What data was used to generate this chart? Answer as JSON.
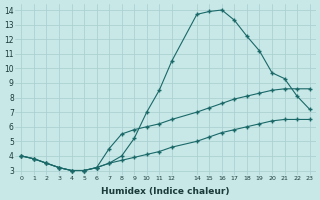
{
  "xlabel": "Humidex (Indice chaleur)",
  "bg_color": "#c8e8e8",
  "grid_color": "#a8cece",
  "line_color": "#1a6868",
  "xlim": [
    -0.5,
    23.5
  ],
  "ylim": [
    2.7,
    14.4
  ],
  "xticks": [
    0,
    1,
    2,
    3,
    4,
    5,
    6,
    7,
    8,
    9,
    10,
    11,
    12,
    14,
    15,
    16,
    17,
    18,
    19,
    20,
    21,
    22,
    23
  ],
  "yticks": [
    3,
    4,
    5,
    6,
    7,
    8,
    9,
    10,
    11,
    12,
    13,
    14
  ],
  "line1_x": [
    0,
    1,
    2,
    3,
    4,
    5,
    6,
    7,
    8,
    9,
    10,
    11,
    12,
    14,
    15,
    16,
    17,
    18,
    19,
    20,
    21,
    22,
    23
  ],
  "line1_y": [
    4.0,
    3.8,
    3.5,
    3.2,
    3.0,
    3.0,
    3.2,
    3.5,
    4.0,
    5.2,
    7.0,
    8.5,
    10.5,
    13.7,
    13.9,
    14.0,
    13.3,
    12.2,
    11.2,
    9.7,
    9.3,
    8.1,
    7.2
  ],
  "line2_x": [
    0,
    1,
    2,
    3,
    4,
    5,
    6,
    7,
    8,
    9,
    10,
    11,
    12,
    14,
    15,
    16,
    17,
    18,
    19,
    20,
    21,
    22,
    23
  ],
  "line2_y": [
    4.0,
    3.8,
    3.5,
    3.2,
    3.0,
    3.0,
    3.2,
    4.5,
    5.5,
    5.8,
    6.0,
    6.2,
    6.5,
    7.0,
    7.3,
    7.6,
    7.9,
    8.1,
    8.3,
    8.5,
    8.6,
    8.6,
    8.6
  ],
  "line3_x": [
    0,
    1,
    2,
    3,
    4,
    5,
    6,
    7,
    8,
    9,
    10,
    11,
    12,
    14,
    15,
    16,
    17,
    18,
    19,
    20,
    21,
    22,
    23
  ],
  "line3_y": [
    4.0,
    3.8,
    3.5,
    3.2,
    3.0,
    3.0,
    3.2,
    3.5,
    3.7,
    3.9,
    4.1,
    4.3,
    4.6,
    5.0,
    5.3,
    5.6,
    5.8,
    6.0,
    6.2,
    6.4,
    6.5,
    6.5,
    6.5
  ]
}
